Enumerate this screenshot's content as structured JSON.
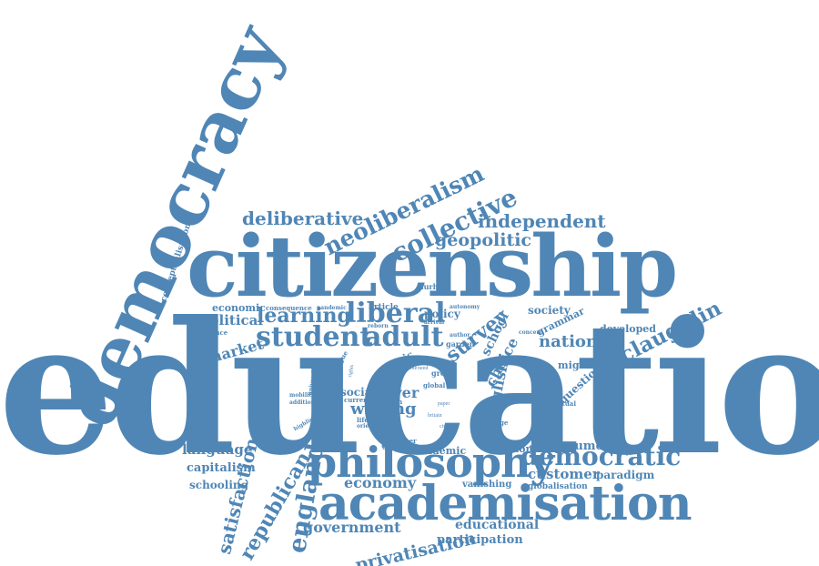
{
  "colors": {
    "word": "#4f86b5",
    "background": "#ffffff"
  },
  "words": [
    "education",
    "citizenship",
    "democracy",
    "democratic",
    "academisation",
    "philosophy",
    "student",
    "adult",
    "liberal",
    "learning",
    "neoliberalism",
    "collective",
    "deliberative",
    "independent",
    "geopolitic",
    "mclaughlin",
    "national",
    "survey",
    "school",
    "choice",
    "english",
    "power",
    "writing",
    "political",
    "market",
    "economic",
    "society",
    "policy",
    "developed",
    "grammar",
    "migrant",
    "question",
    "consumer",
    "customer",
    "paradigm",
    "kingdom",
    "academic",
    "economy",
    "vanishing",
    "globalisation",
    "language",
    "capitalism",
    "schooling",
    "satisfaction",
    "republican",
    "england",
    "government",
    "privatisation",
    "educational",
    "participation",
    "conceptualisation",
    "durham",
    "article",
    "consequence",
    "pandemic",
    "governance",
    "democracies",
    "universities",
    "private",
    "civic",
    "great",
    "global",
    "social",
    "nation",
    "current",
    "lifelong",
    "oriented",
    "highlight",
    "addition",
    "mobility",
    "teacher",
    "university",
    "argue",
    "change",
    "intellectual",
    "garden",
    "author",
    "autonomy",
    "reborn",
    "arrival",
    "concern",
    "agency",
    "model",
    "need",
    "role",
    "paper",
    "britain",
    "citizen",
    "rights",
    "horse",
    "space"
  ]
}
